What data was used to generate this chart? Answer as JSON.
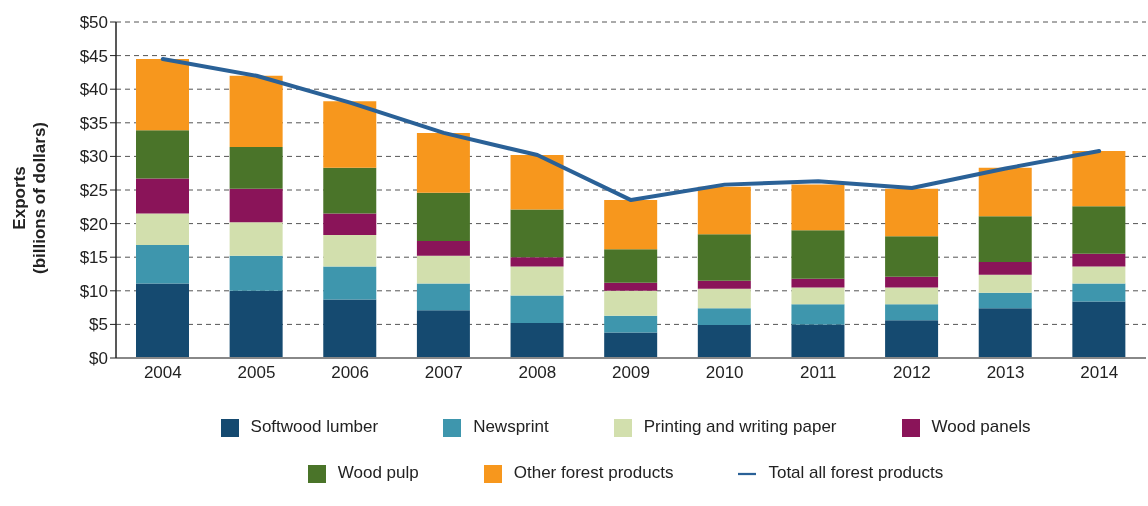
{
  "chart_data": {
    "type": "bar",
    "stacked": true,
    "ylabel": "Exports\n(billions of dollars)",
    "categories": [
      "2004",
      "2005",
      "2006",
      "2007",
      "2008",
      "2009",
      "2010",
      "2011",
      "2012",
      "2013",
      "2014"
    ],
    "series": [
      {
        "name": "Softwood lumber",
        "color": "#154a70",
        "values": [
          11.1,
          10.0,
          8.7,
          7.1,
          5.2,
          3.8,
          4.9,
          5.0,
          5.6,
          7.4,
          8.4
        ]
      },
      {
        "name": "Newsprint",
        "color": "#3e96ad",
        "values": [
          5.7,
          5.2,
          4.9,
          4.0,
          4.1,
          2.5,
          2.5,
          3.0,
          2.4,
          2.3,
          2.7
        ]
      },
      {
        "name": "Printing and writing paper",
        "color": "#d2dfad",
        "values": [
          4.7,
          5.0,
          4.7,
          4.1,
          4.3,
          3.7,
          2.9,
          2.5,
          2.5,
          2.7,
          2.5
        ]
      },
      {
        "name": "Wood panels",
        "color": "#8a1459",
        "values": [
          5.2,
          5.0,
          3.2,
          2.2,
          1.4,
          1.2,
          1.2,
          1.3,
          1.6,
          1.9,
          1.9
        ]
      },
      {
        "name": "Wood pulp",
        "color": "#4a7429",
        "values": [
          7.2,
          6.2,
          6.8,
          7.2,
          7.1,
          5.0,
          6.9,
          7.2,
          6.0,
          6.8,
          7.1
        ]
      },
      {
        "name": "Other forest products",
        "color": "#f7971d",
        "values": [
          10.6,
          10.6,
          9.9,
          8.9,
          8.1,
          7.3,
          7.1,
          6.8,
          7.1,
          7.2,
          8.2
        ]
      },
      {
        "name": "Total all forest products",
        "type": "line",
        "color": "#2a6197",
        "values": [
          44.5,
          42.0,
          38.0,
          33.5,
          30.2,
          23.5,
          25.8,
          26.3,
          25.3,
          28.2,
          30.8
        ]
      }
    ],
    "ylim": [
      0,
      50
    ],
    "yticks": [
      {
        "value": 0,
        "label": "$0"
      },
      {
        "value": 5,
        "label": "$5"
      },
      {
        "value": 10,
        "label": "$10"
      },
      {
        "value": 15,
        "label": "$15"
      },
      {
        "value": 20,
        "label": "$20"
      },
      {
        "value": 25,
        "label": "$25"
      },
      {
        "value": 30,
        "label": "$30"
      },
      {
        "value": 35,
        "label": "$35"
      },
      {
        "value": 40,
        "label": "$40"
      },
      {
        "value": 45,
        "label": "$45"
      },
      {
        "value": 50,
        "label": "$50"
      }
    ],
    "grid": "y",
    "legend": "bottom",
    "marker": "none"
  }
}
